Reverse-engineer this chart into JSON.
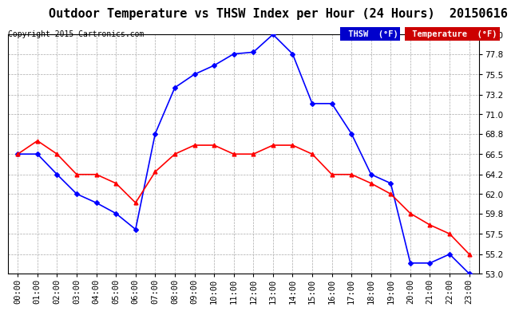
{
  "title": "Outdoor Temperature vs THSW Index per Hour (24 Hours)  20150616",
  "copyright": "Copyright 2015 Cartronics.com",
  "background_color": "#ffffff",
  "plot_bg_color": "#ffffff",
  "grid_color": "#aaaaaa",
  "hours": [
    "00:00",
    "01:00",
    "02:00",
    "03:00",
    "04:00",
    "05:00",
    "06:00",
    "07:00",
    "08:00",
    "09:00",
    "10:00",
    "11:00",
    "12:00",
    "13:00",
    "14:00",
    "15:00",
    "16:00",
    "17:00",
    "18:00",
    "19:00",
    "20:00",
    "21:00",
    "22:00",
    "23:00"
  ],
  "thsw": [
    66.5,
    66.5,
    64.2,
    62.0,
    61.0,
    59.8,
    58.0,
    68.8,
    74.0,
    75.5,
    76.5,
    77.8,
    78.0,
    80.0,
    77.8,
    72.2,
    72.2,
    68.8,
    64.2,
    63.2,
    54.2,
    54.2,
    55.2,
    53.0
  ],
  "temperature": [
    66.5,
    68.0,
    66.5,
    64.2,
    64.2,
    63.2,
    61.0,
    64.5,
    66.5,
    67.5,
    67.5,
    66.5,
    66.5,
    67.5,
    67.5,
    66.5,
    64.2,
    64.2,
    63.2,
    62.0,
    59.8,
    58.5,
    57.5,
    55.2
  ],
  "thsw_color": "#0000ff",
  "temp_color": "#ff0000",
  "ylim_min": 53.0,
  "ylim_max": 80.0,
  "yticks": [
    53.0,
    55.2,
    57.5,
    59.8,
    62.0,
    64.2,
    66.5,
    68.8,
    71.0,
    73.2,
    75.5,
    77.8,
    80.0
  ],
  "legend_thsw_bg": "#0000cc",
  "legend_temp_bg": "#cc0000",
  "legend_text_color": "#ffffff",
  "title_fontsize": 11,
  "axis_fontsize": 7.5,
  "copyright_fontsize": 7
}
